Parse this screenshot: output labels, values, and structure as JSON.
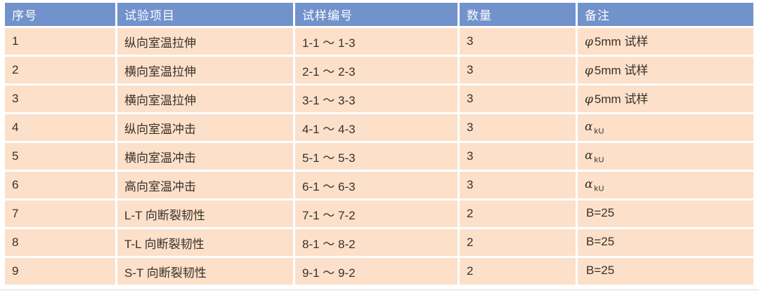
{
  "table": {
    "columns": {
      "no": "序号",
      "item": "试验项目",
      "sample": "试样编号",
      "qty": "数量",
      "remark": "备注"
    },
    "rows": [
      {
        "no": "1",
        "item": "纵向室温拉伸",
        "sample": "1-1 ～ 1-3",
        "qty": "3",
        "remark_sym": "φ",
        "remark_sub": "",
        "remark_rest": "5mm 试样"
      },
      {
        "no": "2",
        "item": "横向室温拉伸",
        "sample": "2-1 ～ 2-3",
        "qty": "3",
        "remark_sym": "φ",
        "remark_sub": "",
        "remark_rest": "5mm 试样"
      },
      {
        "no": "3",
        "item": "横向室温拉伸",
        "sample": "3-1 ～ 3-3",
        "qty": "3",
        "remark_sym": "φ",
        "remark_sub": "",
        "remark_rest": "5mm 试样"
      },
      {
        "no": "4",
        "item": "纵向室温冲击",
        "sample": "4-1 ～ 4-3",
        "qty": "3",
        "remark_sym": "α",
        "remark_sub": "kU",
        "remark_rest": ""
      },
      {
        "no": "5",
        "item": "横向室温冲击",
        "sample": "5-1 ～ 5-3",
        "qty": "3",
        "remark_sym": "α",
        "remark_sub": "kU",
        "remark_rest": ""
      },
      {
        "no": "6",
        "item": "高向室温冲击",
        "sample": "6-1 ～ 6-3",
        "qty": "3",
        "remark_sym": "α",
        "remark_sub": "kU",
        "remark_rest": ""
      },
      {
        "no": "7",
        "item": "L-T 向断裂韧性",
        "sample": "7-1 ～ 7-2",
        "qty": "2",
        "remark_sym": "",
        "remark_sub": "",
        "remark_rest": "B=25"
      },
      {
        "no": "8",
        "item": "T-L 向断裂韧性",
        "sample": "8-1 ～ 8-2",
        "qty": "2",
        "remark_sym": "",
        "remark_sub": "",
        "remark_rest": "B=25"
      },
      {
        "no": "9",
        "item": "S-T 向断裂韧性",
        "sample": "9-1 ～ 9-2",
        "qty": "2",
        "remark_sym": "",
        "remark_sub": "",
        "remark_rest": "B=25"
      }
    ],
    "colors": {
      "header_bg": "#7292CB",
      "row_bg": "#FCE0CA",
      "header_text": "#FDFDFE",
      "body_text": "#38312A"
    }
  }
}
